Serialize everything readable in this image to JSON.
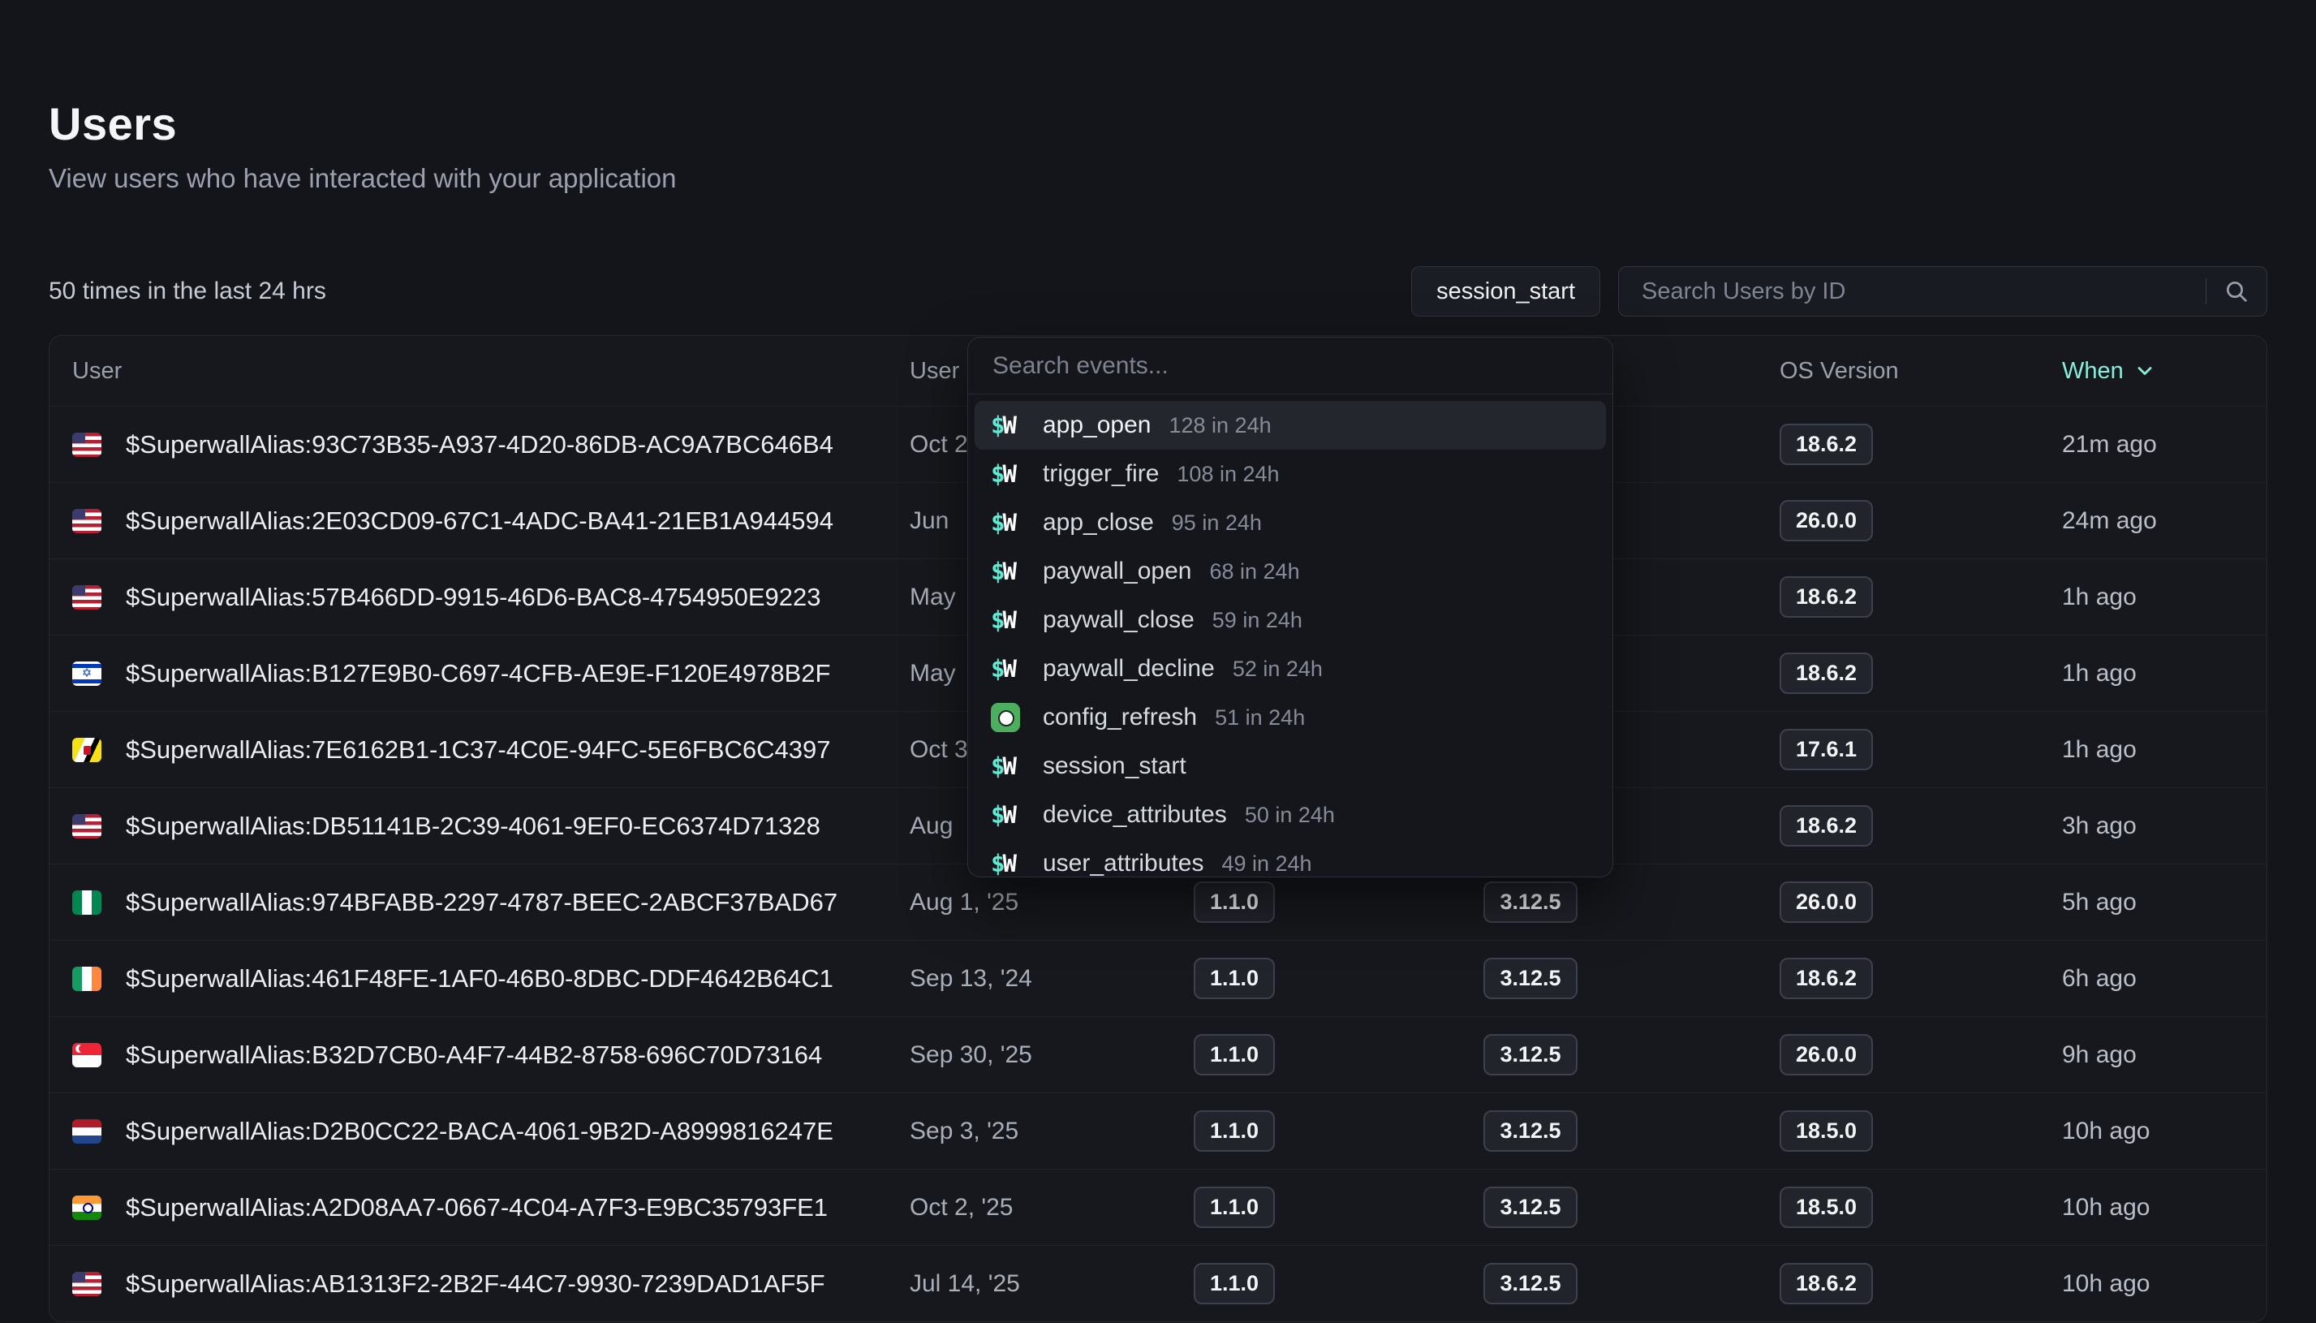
{
  "page": {
    "title": "Users",
    "subtitle": "View users who have interacted with your application"
  },
  "toolbar": {
    "count_label": "50 times in the last 24 hrs",
    "filter_label": "session_start",
    "search_placeholder": "Search Users by ID"
  },
  "table": {
    "columns": [
      "User",
      "User",
      "",
      "",
      "OS Version",
      "When"
    ],
    "rows": [
      {
        "flag": "us",
        "id": "$SuperwallAlias:93C73B35-A937-4D20-86DB-AC9A7BC646B4",
        "created": "Oct 2",
        "app_version": "",
        "sdk_version": "",
        "os_version": "18.6.2",
        "when": "21m ago"
      },
      {
        "flag": "us",
        "id": "$SuperwallAlias:2E03CD09-67C1-4ADC-BA41-21EB1A944594",
        "created": "Jun",
        "app_version": "",
        "sdk_version": "",
        "os_version": "26.0.0",
        "when": "24m ago"
      },
      {
        "flag": "us",
        "id": "$SuperwallAlias:57B466DD-9915-46D6-BAC8-4754950E9223",
        "created": "May",
        "app_version": "",
        "sdk_version": "",
        "os_version": "18.6.2",
        "when": "1h ago"
      },
      {
        "flag": "il",
        "id": "$SuperwallAlias:B127E9B0-C697-4CFB-AE9E-F120E4978B2F",
        "created": "May",
        "app_version": "",
        "sdk_version": "",
        "os_version": "18.6.2",
        "when": "1h ago"
      },
      {
        "flag": "bn",
        "id": "$SuperwallAlias:7E6162B1-1C37-4C0E-94FC-5E6FBC6C4397",
        "created": "Oct 3",
        "app_version": "",
        "sdk_version": "",
        "os_version": "17.6.1",
        "when": "1h ago"
      },
      {
        "flag": "us",
        "id": "$SuperwallAlias:DB51141B-2C39-4061-9EF0-EC6374D71328",
        "created": "Aug",
        "app_version": "",
        "sdk_version": "",
        "os_version": "18.6.2",
        "when": "3h ago"
      },
      {
        "flag": "ng",
        "id": "$SuperwallAlias:974BFABB-2297-4787-BEEC-2ABCF37BAD67",
        "created": "Aug 1, '25",
        "app_version": "1.1.0",
        "sdk_version": "3.12.5",
        "os_version": "26.0.0",
        "when": "5h ago"
      },
      {
        "flag": "ie",
        "id": "$SuperwallAlias:461F48FE-1AF0-46B0-8DBC-DDF4642B64C1",
        "created": "Sep 13, '24",
        "app_version": "1.1.0",
        "sdk_version": "3.12.5",
        "os_version": "18.6.2",
        "when": "6h ago"
      },
      {
        "flag": "sg",
        "id": "$SuperwallAlias:B32D7CB0-A4F7-44B2-8758-696C70D73164",
        "created": "Sep 30, '25",
        "app_version": "1.1.0",
        "sdk_version": "3.12.5",
        "os_version": "26.0.0",
        "when": "9h ago"
      },
      {
        "flag": "nl",
        "id": "$SuperwallAlias:D2B0CC22-BACA-4061-9B2D-A8999816247E",
        "created": "Sep 3, '25",
        "app_version": "1.1.0",
        "sdk_version": "3.12.5",
        "os_version": "18.5.0",
        "when": "10h ago"
      },
      {
        "flag": "in",
        "id": "$SuperwallAlias:A2D08AA7-0667-4C04-A7F3-E9BC35793FE1",
        "created": "Oct 2, '25",
        "app_version": "1.1.0",
        "sdk_version": "3.12.5",
        "os_version": "18.5.0",
        "when": "10h ago"
      },
      {
        "flag": "us",
        "id": "$SuperwallAlias:AB1313F2-2B2F-44C7-9930-7239DAD1AF5F",
        "created": "Jul 14, '25",
        "app_version": "1.1.0",
        "sdk_version": "3.12.5",
        "os_version": "18.6.2",
        "when": "10h ago"
      }
    ]
  },
  "event_dropdown": {
    "search_placeholder": "Search events...",
    "items": [
      {
        "icon": "sw",
        "name": "app_open",
        "count": "128 in 24h",
        "selected": true
      },
      {
        "icon": "sw",
        "name": "trigger_fire",
        "count": "108 in 24h",
        "selected": false
      },
      {
        "icon": "sw",
        "name": "app_close",
        "count": "95 in 24h",
        "selected": false
      },
      {
        "icon": "sw",
        "name": "paywall_open",
        "count": "68 in 24h",
        "selected": false
      },
      {
        "icon": "sw",
        "name": "paywall_close",
        "count": "59 in 24h",
        "selected": false
      },
      {
        "icon": "sw",
        "name": "paywall_decline",
        "count": "52 in 24h",
        "selected": false
      },
      {
        "icon": "config",
        "name": "config_refresh",
        "count": "51 in 24h",
        "selected": false
      },
      {
        "icon": "sw",
        "name": "session_start",
        "count": "",
        "selected": false
      },
      {
        "icon": "sw",
        "name": "device_attributes",
        "count": "50 in 24h",
        "selected": false
      },
      {
        "icon": "sw",
        "name": "user_attributes",
        "count": "49 in 24h",
        "selected": false
      }
    ]
  },
  "colors": {
    "accent_teal": "#5eead4",
    "when_header": "#87efdc",
    "page_bg": "#14151a",
    "table_bg": "#17181d",
    "badge_bg": "#22242c",
    "config_icon_green": "#4caf5f"
  }
}
